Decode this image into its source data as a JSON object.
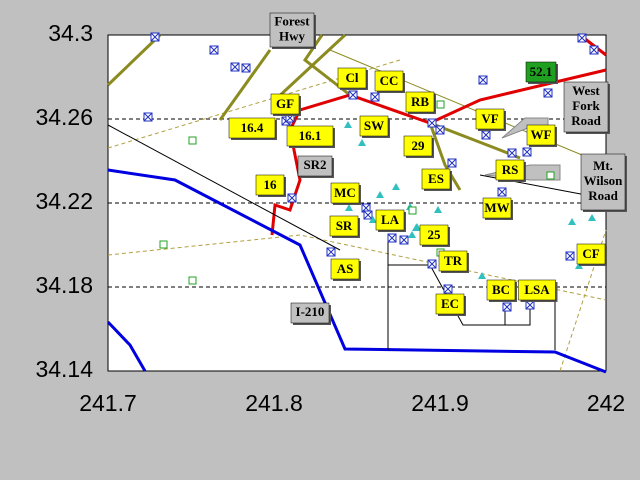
{
  "chart_data": {
    "type": "map",
    "xlim": [
      241.7,
      242
    ],
    "xticks": [
      241.7,
      241.8,
      241.9,
      242
    ],
    "ylim": [
      34.14,
      34.3
    ],
    "yticks": [
      34.14,
      34.18,
      34.22,
      34.26,
      34.3
    ],
    "grid": true,
    "station_labels": [
      "Cl",
      "CC",
      "RB",
      "GF",
      "16.4",
      "16.1",
      "SW",
      "VF",
      "WF",
      "29",
      "RS",
      "ES",
      "16",
      "MC",
      "MW",
      "SR",
      "LA",
      "25",
      "AS",
      "TR",
      "BC",
      "LSA",
      "EC",
      "CF"
    ],
    "highlight_label": "52.1",
    "road_labels": [
      [
        "Forest",
        "Hwy"
      ],
      [
        "SR2"
      ],
      [
        "I-210"
      ],
      [
        "West",
        "Fork",
        "Road"
      ],
      [
        "Mt.",
        "Wilson",
        "Road"
      ]
    ]
  }
}
